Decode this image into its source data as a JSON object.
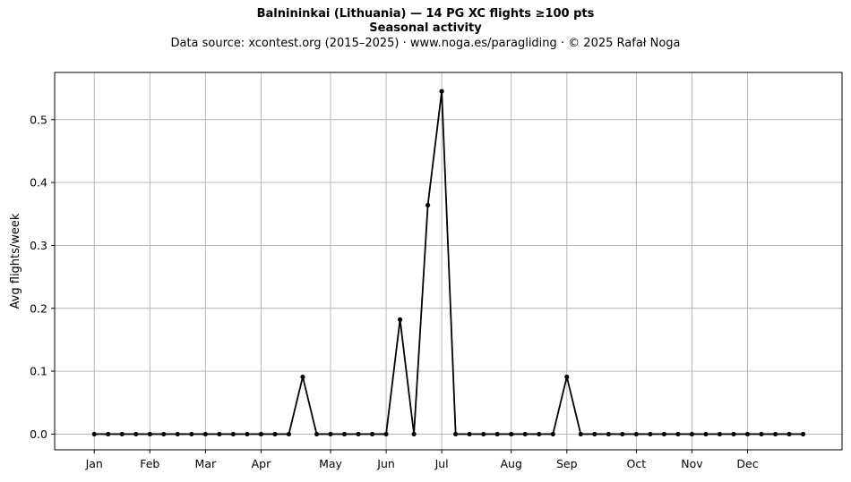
{
  "title": "Balnininkai (Lithuania)  —  14 PG XC flights ≥100 pts",
  "subtitle": "Seasonal activity",
  "source_line": "Data source: xcontest.org (2015–2025)  ·  www.noga.es/paragliding  ·  © 2025 Rafał Noga",
  "chart_data": {
    "type": "line",
    "xlabel": "",
    "ylabel": "Avg flights/week",
    "grid": true,
    "ylim": [
      -0.025,
      0.575
    ],
    "y_ticks": [
      0.0,
      0.1,
      0.2,
      0.3,
      0.4,
      0.5
    ],
    "x_ticks": [
      {
        "label": "Jan",
        "week": 1
      },
      {
        "label": "Feb",
        "week": 5
      },
      {
        "label": "Mar",
        "week": 9
      },
      {
        "label": "Apr",
        "week": 13
      },
      {
        "label": "May",
        "week": 18
      },
      {
        "label": "Jun",
        "week": 22
      },
      {
        "label": "Jul",
        "week": 26
      },
      {
        "label": "Aug",
        "week": 31
      },
      {
        "label": "Sep",
        "week": 35
      },
      {
        "label": "Oct",
        "week": 40
      },
      {
        "label": "Nov",
        "week": 44
      },
      {
        "label": "Dec",
        "week": 48
      }
    ],
    "xlim": [
      -1.85,
      54.8
    ],
    "series": [
      {
        "name": "",
        "color": "#000000",
        "x": [
          1,
          2,
          3,
          4,
          5,
          6,
          7,
          8,
          9,
          10,
          11,
          12,
          13,
          14,
          15,
          16,
          17,
          18,
          19,
          20,
          21,
          22,
          23,
          24,
          25,
          26,
          27,
          28,
          29,
          30,
          31,
          32,
          33,
          34,
          35,
          36,
          37,
          38,
          39,
          40,
          41,
          42,
          43,
          44,
          45,
          46,
          47,
          48,
          49,
          50,
          51,
          52
        ],
        "values": [
          0,
          0,
          0,
          0,
          0,
          0,
          0,
          0,
          0,
          0,
          0,
          0,
          0,
          0,
          0,
          0.091,
          0,
          0,
          0,
          0,
          0,
          0,
          0.182,
          0,
          0.364,
          0.545,
          0,
          0,
          0,
          0,
          0,
          0,
          0,
          0,
          0.091,
          0,
          0,
          0,
          0,
          0,
          0,
          0,
          0,
          0,
          0,
          0,
          0,
          0,
          0,
          0,
          0,
          0
        ]
      }
    ]
  }
}
